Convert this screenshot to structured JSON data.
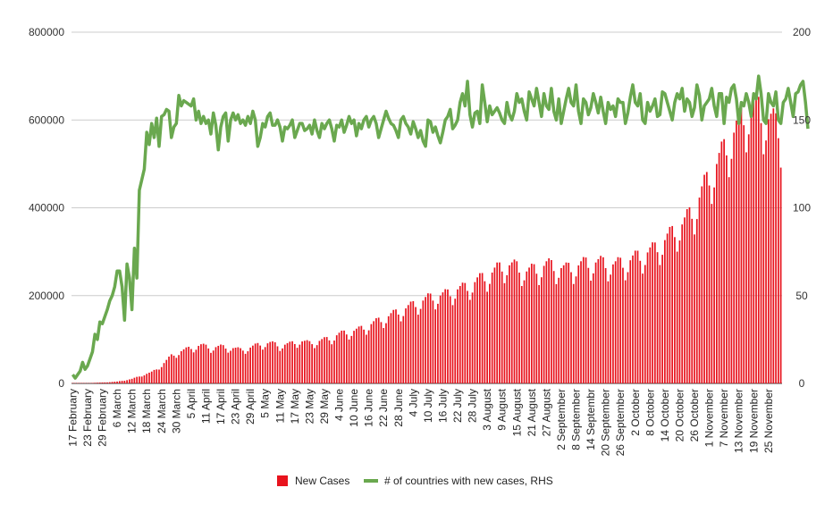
{
  "chart_data": {
    "type": "bar+line",
    "legend_position": "bottom",
    "grid": true,
    "y_left": {
      "ticks": [
        "0",
        "200000",
        "400000",
        "600000",
        "800000"
      ],
      "range": [
        0,
        800000
      ]
    },
    "y_right": {
      "ticks": [
        "0",
        "50",
        "100",
        "150",
        "200"
      ],
      "range": [
        0,
        200
      ]
    },
    "x_tick_labels": [
      "17 February",
      "23 February",
      "29 February",
      "6 March",
      "12 March",
      "18 March",
      "24 March",
      "30 March",
      "5 April",
      "11 April",
      "17 April",
      "23 April",
      "29 April",
      "5 May",
      "11 May",
      "17 May",
      "23 May",
      "29 May",
      "4 June",
      "10 June",
      "16 June",
      "22 June",
      "28 June",
      "4 July",
      "10 July",
      "16 July",
      "22 July",
      "28 July",
      "3 August",
      "9 August",
      "15 August",
      "21 August",
      "27 August",
      "2 September",
      "8 September",
      "14 Septembr",
      "20 September",
      "26 September",
      "2 October",
      "8 October",
      "14 October",
      "20 October",
      "26 October",
      "1 November",
      "7 November",
      "13 November",
      "19 November",
      "25 November"
    ],
    "start_date": "2020-02-17",
    "end_date": "2020-11-30",
    "series": [
      {
        "name": "New Cases",
        "type": "bar",
        "color": "#e8131d",
        "anchors": [
          [
            0,
            1000
          ],
          [
            6,
            800
          ],
          [
            12,
            2000
          ],
          [
            18,
            4000
          ],
          [
            24,
            10000
          ],
          [
            28,
            18000
          ],
          [
            32,
            25000
          ],
          [
            36,
            40000
          ],
          [
            40,
            62000
          ],
          [
            44,
            72000
          ],
          [
            48,
            80000
          ],
          [
            52,
            85000
          ],
          [
            56,
            80000
          ],
          [
            60,
            82000
          ],
          [
            64,
            80000
          ],
          [
            68,
            75000
          ],
          [
            72,
            80000
          ],
          [
            76,
            88000
          ],
          [
            80,
            90000
          ],
          [
            84,
            85000
          ],
          [
            88,
            88000
          ],
          [
            92,
            95000
          ],
          [
            96,
            90000
          ],
          [
            100,
            95000
          ],
          [
            104,
            100000
          ],
          [
            108,
            110000
          ],
          [
            112,
            115000
          ],
          [
            116,
            120000
          ],
          [
            120,
            130000
          ],
          [
            124,
            140000
          ],
          [
            128,
            150000
          ],
          [
            132,
            160000
          ],
          [
            136,
            170000
          ],
          [
            140,
            180000
          ],
          [
            144,
            190000
          ],
          [
            148,
            195000
          ],
          [
            152,
            200000
          ],
          [
            156,
            210000
          ],
          [
            160,
            215000
          ],
          [
            164,
            230000
          ],
          [
            168,
            240000
          ],
          [
            172,
            255000
          ],
          [
            176,
            265000
          ],
          [
            180,
            260000
          ],
          [
            184,
            250000
          ],
          [
            188,
            255000
          ],
          [
            192,
            265000
          ],
          [
            196,
            260000
          ],
          [
            200,
            255000
          ],
          [
            204,
            262000
          ],
          [
            208,
            268000
          ],
          [
            212,
            270000
          ],
          [
            216,
            268000
          ],
          [
            220,
            265000
          ],
          [
            224,
            270000
          ],
          [
            228,
            280000
          ],
          [
            232,
            290000
          ],
          [
            236,
            300000
          ],
          [
            240,
            320000
          ],
          [
            244,
            340000
          ],
          [
            248,
            360000
          ],
          [
            252,
            390000
          ],
          [
            256,
            440000
          ],
          [
            260,
            480000
          ],
          [
            264,
            520000
          ],
          [
            268,
            560000
          ],
          [
            272,
            600000
          ],
          [
            276,
            620000
          ],
          [
            280,
            600000
          ],
          [
            284,
            580000
          ],
          [
            288,
            560000
          ]
        ],
        "weekly_pattern": [
          0.87,
          0.93,
          1.02,
          1.05,
          1.08,
          1.07,
          0.98
        ]
      },
      {
        "name": "# of countries with new cases, RHS",
        "type": "line",
        "color": "#6aa84f",
        "values": [
          5,
          3,
          5,
          7,
          12,
          8,
          10,
          14,
          18,
          28,
          25,
          35,
          34,
          38,
          42,
          47,
          50,
          55,
          64,
          64,
          55,
          36,
          68,
          60,
          42,
          77,
          60,
          110,
          116,
          122,
          143,
          136,
          148,
          140,
          151,
          135,
          152,
          153,
          156,
          155,
          140,
          146,
          148,
          164,
          158,
          161,
          160,
          159,
          158,
          162,
          150,
          155,
          148,
          152,
          148,
          150,
          142,
          154,
          147,
          133,
          146,
          152,
          154,
          138,
          150,
          154,
          150,
          153,
          148,
          150,
          147,
          152,
          148,
          155,
          150,
          135,
          140,
          148,
          146,
          152,
          154,
          147,
          147,
          150,
          146,
          138,
          146,
          145,
          147,
          150,
          140,
          144,
          148,
          148,
          144,
          145,
          147,
          142,
          150,
          144,
          140,
          148,
          145,
          148,
          150,
          145,
          138,
          147,
          146,
          150,
          143,
          147,
          152,
          148,
          150,
          141,
          148,
          145,
          150,
          152,
          146,
          150,
          152,
          148,
          140,
          145,
          150,
          155,
          151,
          148,
          147,
          144,
          140,
          150,
          152,
          148,
          146,
          142,
          149,
          145,
          140,
          144,
          138,
          135,
          150,
          149,
          143,
          146,
          141,
          137,
          143,
          150,
          152,
          156,
          145,
          147,
          150,
          160,
          165,
          158,
          172,
          153,
          146,
          154,
          155,
          148,
          170,
          160,
          149,
          158,
          153,
          155,
          157,
          154,
          150,
          148,
          160,
          153,
          150,
          155,
          165,
          160,
          162,
          155,
          150,
          166,
          162,
          158,
          168,
          160,
          152,
          165,
          158,
          156,
          168,
          155,
          150,
          162,
          148,
          155,
          162,
          168,
          160,
          158,
          170,
          155,
          148,
          162,
          160,
          153,
          157,
          165,
          160,
          154,
          163,
          155,
          148,
          160,
          156,
          158,
          152,
          162,
          160,
          160,
          148,
          154,
          163,
          170,
          160,
          158,
          165,
          150,
          148,
          160,
          155,
          158,
          162,
          152,
          153,
          166,
          165,
          160,
          155,
          150,
          160,
          165,
          162,
          168,
          155,
          162,
          160,
          152,
          157,
          170,
          164,
          150,
          158,
          160,
          162,
          168,
          158,
          152,
          165,
          165,
          148,
          163,
          160,
          168,
          170,
          162,
          148,
          160,
          158,
          165,
          160,
          152,
          165,
          162,
          175,
          165,
          150,
          148,
          165,
          160,
          158,
          166,
          150,
          148,
          160,
          162,
          168,
          160,
          152,
          165,
          166,
          170,
          172,
          160,
          145
        ]
      }
    ]
  }
}
